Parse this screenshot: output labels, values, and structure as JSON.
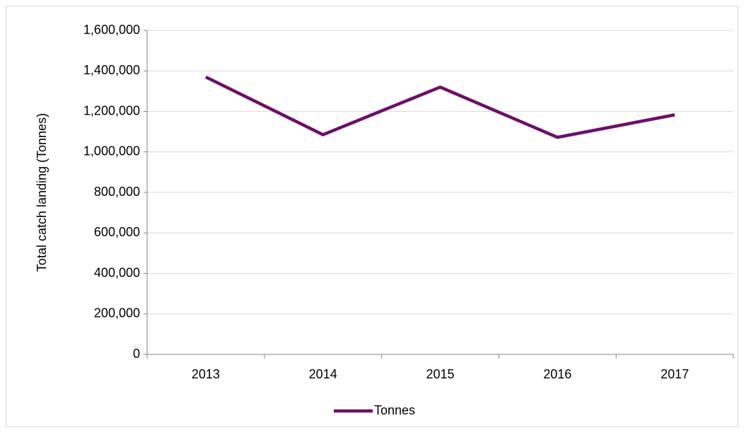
{
  "chart_data": {
    "type": "line",
    "y_label": "Total catch landing  (Tonnes)",
    "categories": [
      "2013",
      "2014",
      "2015",
      "2016",
      "2017"
    ],
    "series": [
      {
        "name": "Tonnes",
        "color": "#6b0f6b",
        "values": [
          1370000,
          1085000,
          1320000,
          1072000,
          1183000
        ]
      }
    ],
    "ylim": [
      0,
      1600000
    ],
    "yticks": [
      0,
      {
        "value": 200000,
        "label": "200,000"
      },
      {
        "value": 400000,
        "label": "400,000"
      },
      {
        "value": 600000,
        "label": "600,000"
      },
      {
        "value": 800000,
        "label": "800,000"
      },
      {
        "value": 1000000,
        "label": "1,000,000"
      },
      {
        "value": 1200000,
        "label": "1,200,000"
      },
      {
        "value": 1400000,
        "label": "1,400,000"
      },
      {
        "value": 1600000,
        "label": "1,600,000"
      }
    ],
    "grid": true,
    "legend": "bottom"
  }
}
